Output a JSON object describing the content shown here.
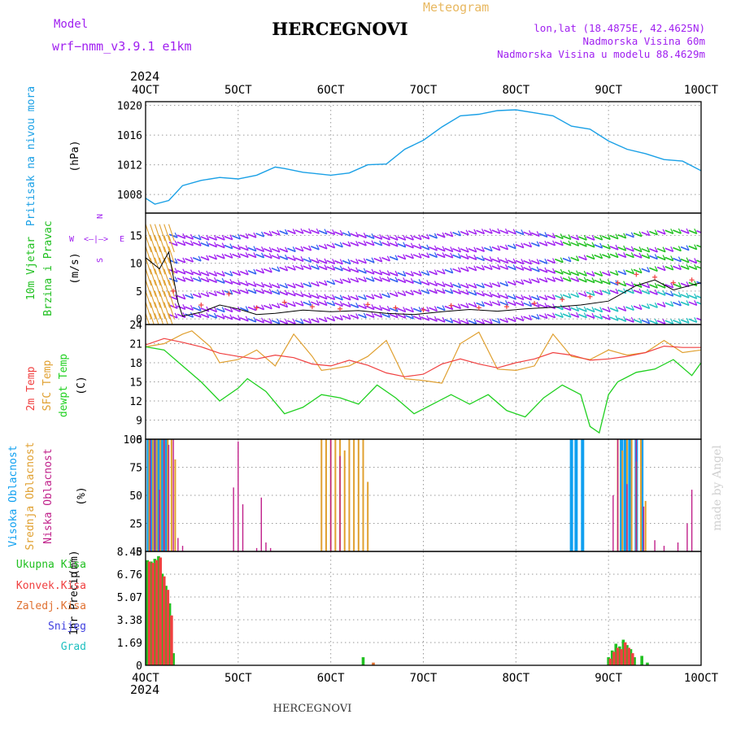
{
  "header": {
    "model_label": "Model",
    "model_name": "wrf−nmm_v3.9.1 e1km",
    "location": "HERCEGNOVI",
    "meteogram": "Meteogram",
    "lonlat": "lon,lat (18.4875E, 42.4625N)",
    "elevation": "Nadmorska Visina 60m",
    "model_elevation": "Nadmorska Visina u modelu 88.4629m"
  },
  "footer": {
    "location": "HERCEGNOVI",
    "credit": "made by Angel"
  },
  "colors": {
    "pressure": "#1aa0e6",
    "wind_purple": "#a020f0",
    "wind_green": "#20c020",
    "temp2m": "#f04040",
    "sfc": "#e0a030",
    "dew": "#20d020",
    "high_cloud": "#10a0f0",
    "mid_cloud": "#e0a030",
    "low_cloud": "#c0208a",
    "snow": "#4040e0",
    "hail": "#20c0c0",
    "frame": "#000000",
    "grid": "#9a9a9a"
  },
  "time_axis": {
    "year": "2024",
    "ticks": [
      "4OCT",
      "5OCT",
      "6OCT",
      "7OCT",
      "8OCT",
      "9OCT",
      "10OCT"
    ],
    "range": [
      0,
      6
    ]
  },
  "chart_data": [
    {
      "type": "line",
      "ylabel": "Pritisak na nivou mora",
      "unit": "(hPa)",
      "ylim": [
        1005.5,
        1020.5
      ],
      "yticks": [
        "1008",
        "1012",
        "1016",
        "1020"
      ],
      "series": [
        {
          "name": "Pritisak na nivou mora",
          "x": [
            0.0,
            0.1,
            0.25,
            0.4,
            0.6,
            0.8,
            1.0,
            1.2,
            1.4,
            1.5,
            1.7,
            2.0,
            2.2,
            2.4,
            2.6,
            2.8,
            3.0,
            3.2,
            3.4,
            3.6,
            3.8,
            4.0,
            4.2,
            4.4,
            4.6,
            4.8,
            5.0,
            5.2,
            5.4,
            5.6,
            5.8,
            6.0
          ],
          "values": [
            1007.5,
            1006.7,
            1007.2,
            1009.2,
            1009.9,
            1010.3,
            1010.1,
            1010.6,
            1011.7,
            1011.5,
            1011.0,
            1010.6,
            1010.9,
            1012.0,
            1012.1,
            1014.1,
            1015.3,
            1017.1,
            1018.6,
            1018.8,
            1019.3,
            1019.4,
            1019.0,
            1018.6,
            1017.2,
            1016.8,
            1015.2,
            1014.1,
            1013.5,
            1012.7,
            1012.5,
            1011.2
          ]
        }
      ]
    },
    {
      "type": "line",
      "ylabel": "10m Vjetar",
      "ylabel2": "Brzina i Pravac",
      "unit": "(m/s)",
      "compass": {
        "north": "N",
        "south": "S",
        "east": "E",
        "west": "W"
      },
      "ylim": [
        -1,
        19
      ],
      "yticks": [
        "0",
        "5",
        "10",
        "15"
      ],
      "series": [
        {
          "name": "wind speed",
          "x": [
            0.0,
            0.15,
            0.25,
            0.35,
            0.4,
            0.6,
            0.8,
            1.0,
            1.2,
            1.4,
            1.7,
            2.0,
            2.3,
            2.6,
            2.9,
            3.2,
            3.5,
            3.8,
            4.1,
            4.4,
            4.7,
            5.0,
            5.3,
            5.5,
            5.7,
            6.0
          ],
          "values": [
            11,
            9,
            12,
            3,
            0.5,
            1.2,
            2.5,
            1.8,
            0.8,
            1.0,
            1.6,
            1.3,
            1.5,
            1.0,
            0.8,
            1.3,
            1.7,
            1.4,
            1.8,
            2.1,
            2.5,
            3.2,
            6.0,
            7.0,
            5.2,
            6.5
          ]
        },
        {
          "name": "gust",
          "x": [
            0.3,
            0.6,
            0.9,
            1.2,
            1.5,
            1.8,
            2.1,
            2.4,
            2.7,
            3.0,
            3.3,
            3.6,
            3.9,
            4.2,
            4.5,
            4.8,
            5.1,
            5.3,
            5.5,
            5.7,
            5.9
          ],
          "values": [
            5.0,
            2.5,
            4.5,
            2.0,
            3.0,
            2.2,
            1.8,
            2.6,
            2.0,
            1.6,
            2.4,
            2.0,
            2.2,
            2.8,
            3.5,
            4.0,
            6.5,
            8.0,
            7.5,
            6.5,
            7.0
          ]
        }
      ]
    },
    {
      "type": "line",
      "ylabel": "2m Temp",
      "ylabel2": "SFC Temp",
      "ylabel3": "dewpt Temp",
      "unit": "(C)",
      "ylim": [
        6,
        24
      ],
      "yticks": [
        "6",
        "9",
        "12",
        "15",
        "18",
        "21",
        "24"
      ],
      "series": [
        {
          "name": "2m Temp",
          "x": [
            0.0,
            0.2,
            0.4,
            0.6,
            0.8,
            1.0,
            1.2,
            1.4,
            1.6,
            1.8,
            2.0,
            2.2,
            2.4,
            2.6,
            2.8,
            3.0,
            3.2,
            3.4,
            3.6,
            3.8,
            4.0,
            4.2,
            4.4,
            4.6,
            4.8,
            5.0,
            5.2,
            5.4,
            5.6,
            5.8,
            6.0
          ],
          "values": [
            20.8,
            21.8,
            21.2,
            20.5,
            19.5,
            19.0,
            18.6,
            19.2,
            18.8,
            17.8,
            17.5,
            18.4,
            17.6,
            16.4,
            15.8,
            16.2,
            17.8,
            18.6,
            17.8,
            17.2,
            18.0,
            18.6,
            19.6,
            19.2,
            18.4,
            18.6,
            19.0,
            19.6,
            20.6,
            20.4,
            20.4
          ]
        },
        {
          "name": "SFC Temp",
          "x": [
            0.0,
            0.2,
            0.4,
            0.5,
            0.7,
            0.8,
            1.0,
            1.2,
            1.4,
            1.6,
            1.8,
            1.9,
            2.0,
            2.2,
            2.4,
            2.6,
            2.8,
            3.0,
            3.2,
            3.4,
            3.6,
            3.8,
            4.0,
            4.2,
            4.4,
            4.6,
            4.8,
            5.0,
            5.2,
            5.4,
            5.6,
            5.8,
            6.0
          ],
          "values": [
            20.5,
            21.0,
            22.5,
            23.0,
            20.5,
            18.0,
            18.5,
            20.0,
            17.5,
            22.5,
            19.0,
            16.8,
            17.0,
            17.5,
            19.0,
            21.5,
            15.5,
            15.2,
            14.8,
            21.0,
            22.8,
            17.0,
            16.8,
            17.5,
            22.5,
            19.0,
            18.5,
            20.0,
            19.2,
            19.6,
            21.5,
            19.6,
            20.0
          ]
        },
        {
          "name": "dewpt Temp",
          "x": [
            0.0,
            0.2,
            0.4,
            0.6,
            0.8,
            1.0,
            1.1,
            1.3,
            1.5,
            1.7,
            1.9,
            2.1,
            2.3,
            2.5,
            2.7,
            2.9,
            3.1,
            3.3,
            3.5,
            3.7,
            3.9,
            4.1,
            4.3,
            4.5,
            4.7,
            4.8,
            4.9,
            5.0,
            5.1,
            5.3,
            5.5,
            5.7,
            5.9,
            6.0
          ],
          "values": [
            20.5,
            20.0,
            17.5,
            15.0,
            12.0,
            14.0,
            15.5,
            13.5,
            10.0,
            11.0,
            13.0,
            12.5,
            11.5,
            14.5,
            12.5,
            10.0,
            11.5,
            13.0,
            11.5,
            13.0,
            10.5,
            9.5,
            12.5,
            14.5,
            13.0,
            8.0,
            7.0,
            13.0,
            15.0,
            16.5,
            17.0,
            18.5,
            16.0,
            18.0
          ]
        }
      ]
    },
    {
      "type": "bar",
      "ylabel": "Visoka Oblacnost",
      "ylabel2": "Srednja Oblacnost",
      "ylabel3": "Niska Oblacnost",
      "unit": "(%)",
      "ylim": [
        0,
        100
      ],
      "yticks": [
        "0",
        "25",
        "50",
        "75",
        "100"
      ],
      "series": [
        {
          "name": "Visoka Oblacnost",
          "x": [
            0.03,
            0.06,
            0.1,
            0.14,
            0.18,
            0.22,
            4.6,
            4.65,
            4.72,
            5.14,
            5.18,
            5.23,
            5.3,
            5.36
          ],
          "values": [
            100,
            100,
            100,
            100,
            100,
            100,
            100,
            100,
            100,
            100,
            100,
            100,
            100,
            100
          ]
        },
        {
          "name": "Srednja Oblacnost",
          "x": [
            0.04,
            0.08,
            0.12,
            0.16,
            0.2,
            0.24,
            0.28,
            0.32,
            1.9,
            1.95,
            2.0,
            2.05,
            2.1,
            2.15,
            2.2,
            2.25,
            2.3,
            2.35,
            2.4,
            5.1,
            5.15,
            5.2,
            5.25,
            5.3,
            5.35,
            5.4
          ],
          "values": [
            100,
            100,
            100,
            100,
            100,
            100,
            100,
            82,
            100,
            100,
            100,
            100,
            100,
            90,
            100,
            100,
            100,
            100,
            62,
            100,
            90,
            100,
            100,
            80,
            100,
            45
          ]
        },
        {
          "name": "Niska Oblacnost",
          "x": [
            0.05,
            0.1,
            0.15,
            0.2,
            0.25,
            0.3,
            0.35,
            0.4,
            0.95,
            1.0,
            1.05,
            1.2,
            1.25,
            1.3,
            1.35,
            2.0,
            2.1,
            5.05,
            5.1,
            5.2,
            5.3,
            5.38,
            5.5,
            5.6,
            5.75,
            5.85,
            5.9
          ],
          "values": [
            100,
            100,
            55,
            100,
            95,
            100,
            12,
            5,
            57,
            98,
            42,
            3,
            48,
            8,
            3,
            100,
            85,
            50,
            100,
            60,
            100,
            40,
            10,
            5,
            8,
            25,
            55
          ]
        }
      ]
    },
    {
      "type": "bar",
      "ylabel": "1hr Precip",
      "unit": "(mm)",
      "legend": [
        "Ukupna Kisa",
        "Konvek.Kisa",
        "Zaledj.Kisa",
        "Snijeg",
        "Grad"
      ],
      "ylim": [
        0,
        8.45
      ],
      "yticks": [
        "0",
        "1.69",
        "3.38",
        "5.07",
        "6.76",
        "8.45"
      ],
      "series": [
        {
          "name": "Ukupna Kisa",
          "x": [
            0.02,
            0.06,
            0.1,
            0.14,
            0.18,
            0.22,
            0.26,
            0.3,
            2.35,
            5.0,
            5.04,
            5.08,
            5.12,
            5.16,
            5.2,
            5.24,
            5.28,
            5.36,
            5.42
          ],
          "values": [
            7.8,
            7.7,
            7.9,
            8.1,
            6.8,
            5.9,
            4.6,
            0.9,
            0.6,
            0.6,
            1.1,
            1.6,
            1.4,
            1.9,
            1.5,
            1.2,
            0.6,
            0.7,
            0.2
          ]
        },
        {
          "name": "Konvek.Kisa",
          "x": [
            0.04,
            0.08,
            0.12,
            0.16,
            0.2,
            0.24,
            0.28,
            5.02,
            5.06,
            5.1,
            5.14,
            5.18,
            5.22,
            5.26
          ],
          "values": [
            7.7,
            7.6,
            7.8,
            8.0,
            6.6,
            5.6,
            3.7,
            0.5,
            1.0,
            1.3,
            1.2,
            1.7,
            1.3,
            0.9
          ]
        },
        {
          "name": "Zaledj.Kisa",
          "x": [
            2.46
          ],
          "values": [
            0.2
          ]
        }
      ]
    }
  ]
}
